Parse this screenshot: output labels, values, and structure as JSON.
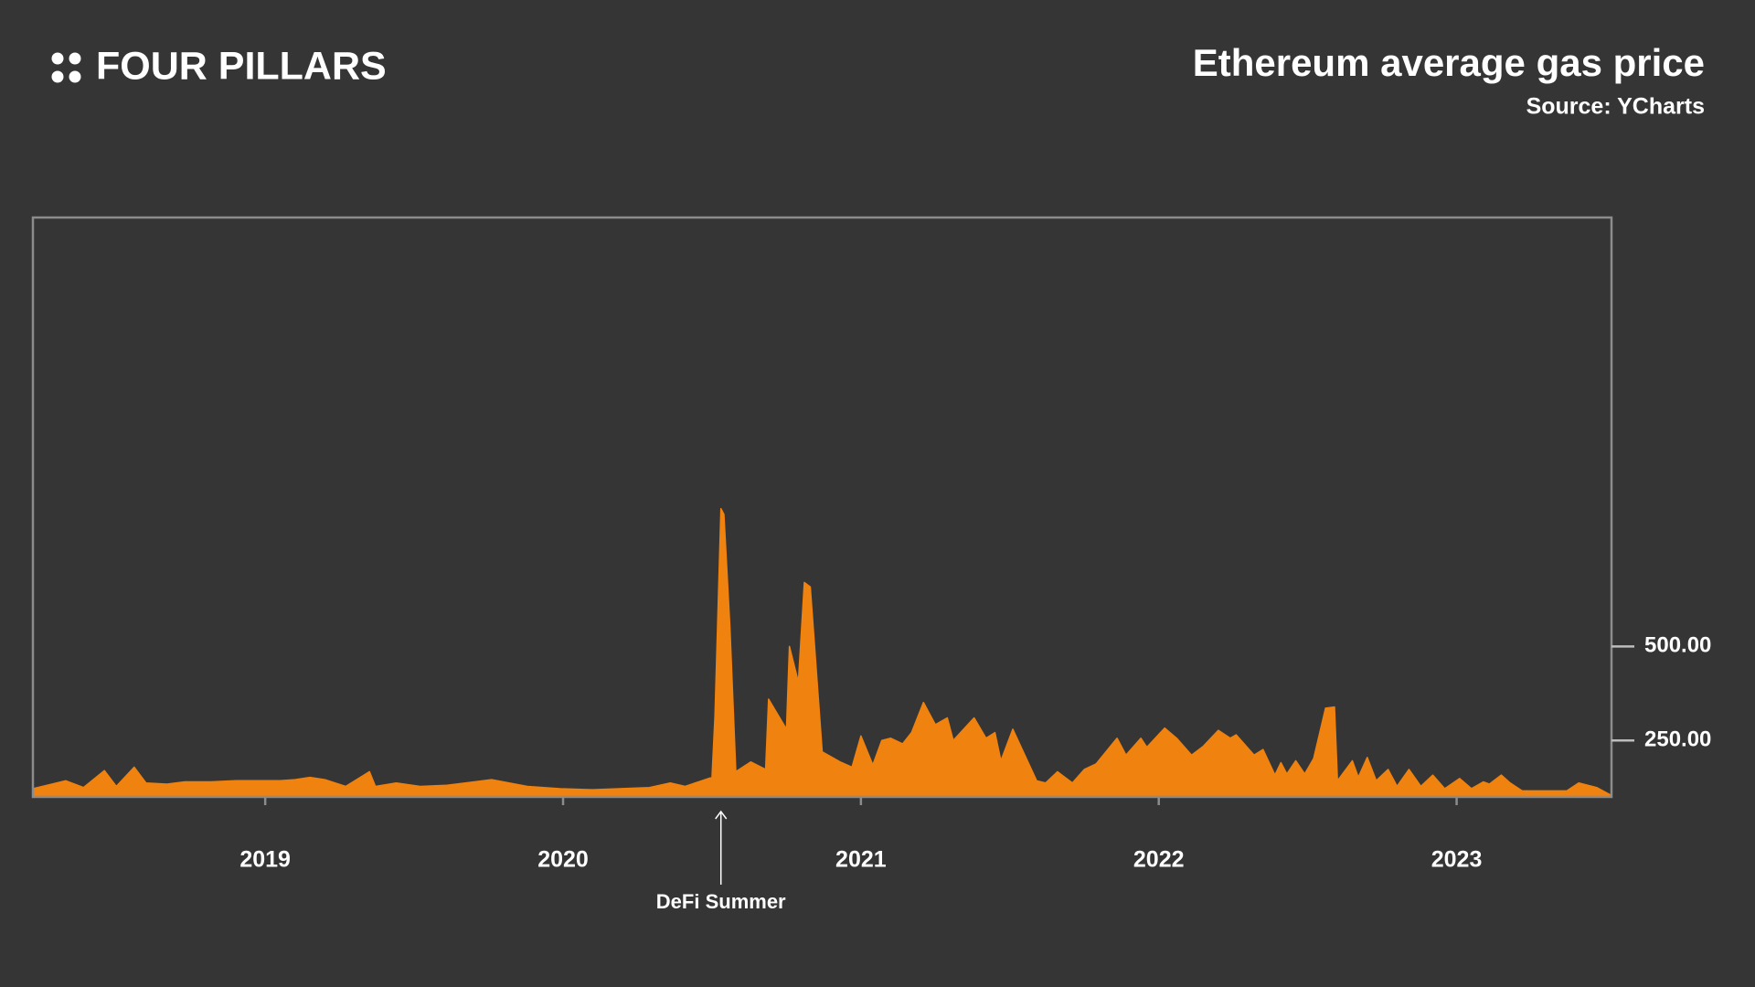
{
  "brand": "FOUR PILLARS",
  "chart_data": {
    "type": "area",
    "title": "Ethereum average gas price",
    "subtitle": "Source: YCharts",
    "color": "#f0820f",
    "xlim": [
      2018.22,
      2023.52
    ],
    "xticks": [
      2019,
      2020,
      2021,
      2022,
      2023
    ],
    "ylim": [
      100,
      1640
    ],
    "yticks": [
      {
        "value": 250,
        "label": "250.00"
      },
      {
        "value": 500,
        "label": "500.00"
      }
    ],
    "annotation": {
      "text": "DeFi Summer",
      "x": 2020.53
    },
    "x": [
      2018.22,
      2018.33,
      2018.39,
      2018.46,
      2018.5,
      2018.56,
      2018.6,
      2018.67,
      2018.73,
      2018.82,
      2018.9,
      2019.05,
      2019.1,
      2019.15,
      2019.2,
      2019.27,
      2019.35,
      2019.37,
      2019.44,
      2019.52,
      2019.61,
      2019.76,
      2019.88,
      2019.99,
      2020.1,
      2020.29,
      2020.36,
      2020.41,
      2020.5,
      2020.51,
      2020.53,
      2020.54,
      2020.56,
      2020.58,
      2020.63,
      2020.68,
      2020.69,
      2020.75,
      2020.76,
      2020.79,
      2020.81,
      2020.83,
      2020.87,
      2020.93,
      2020.97,
      2021.0,
      2021.04,
      2021.07,
      2021.1,
      2021.14,
      2021.17,
      2021.21,
      2021.25,
      2021.29,
      2021.31,
      2021.38,
      2021.42,
      2021.45,
      2021.47,
      2021.51,
      2021.59,
      2021.62,
      2021.66,
      2021.71,
      2021.75,
      2021.79,
      2021.86,
      2021.89,
      2021.94,
      2021.96,
      2022.02,
      2022.06,
      2022.11,
      2022.15,
      2022.2,
      2022.24,
      2022.26,
      2022.32,
      2022.35,
      2022.39,
      2022.41,
      2022.43,
      2022.46,
      2022.49,
      2022.52,
      2022.56,
      2022.59,
      2022.6,
      2022.65,
      2022.67,
      2022.7,
      2022.73,
      2022.77,
      2022.8,
      2022.84,
      2022.88,
      2022.92,
      2022.96,
      2023.01,
      2023.05,
      2023.09,
      2023.11,
      2023.15,
      2023.18,
      2023.22,
      2023.37,
      2023.41,
      2023.47,
      2023.52
    ],
    "values": [
      122,
      143,
      125,
      170,
      128,
      179,
      137,
      134,
      140,
      140,
      143,
      143,
      146,
      152,
      146,
      128,
      167,
      128,
      137,
      128,
      131,
      146,
      128,
      122,
      119,
      125,
      137,
      128,
      152,
      316,
      866,
      851,
      554,
      167,
      193,
      173,
      360,
      280,
      500,
      405,
      670,
      658,
      220,
      193,
      179,
      262,
      185,
      250,
      256,
      241,
      271,
      351,
      292,
      310,
      250,
      310,
      256,
      271,
      196,
      280,
      143,
      137,
      167,
      137,
      173,
      188,
      256,
      211,
      256,
      232,
      283,
      256,
      211,
      235,
      277,
      256,
      265,
      211,
      226,
      158,
      191,
      161,
      196,
      161,
      202,
      336,
      339,
      143,
      196,
      152,
      205,
      143,
      173,
      128,
      173,
      128,
      158,
      122,
      149,
      122,
      140,
      134,
      158,
      137,
      116,
      116,
      137,
      125,
      104
    ]
  }
}
